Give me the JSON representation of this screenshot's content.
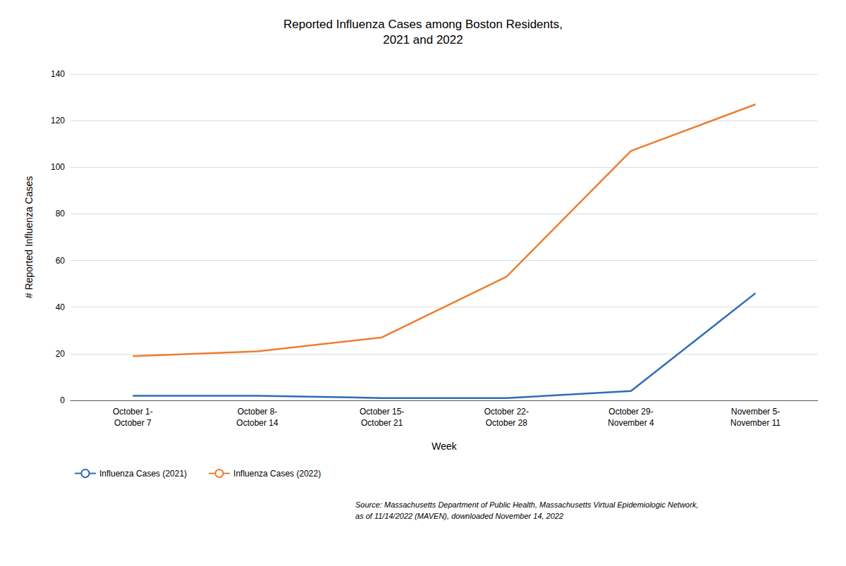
{
  "chart_data": {
    "type": "line",
    "title": "Reported Influenza Cases among Boston Residents,\n2021 and 2022",
    "x_label": "Week",
    "y_label": "# Reported Influenza Cases",
    "categories": [
      "October 1-\nOctober 7",
      "October 8-\nOctober 14",
      "October 15-\nOctober 21",
      "October 22-\nOctober 28",
      "October 29-\nNovember 4",
      "November 5-\nNovember 11"
    ],
    "series": [
      {
        "name": "Influenza Cases (2021)",
        "color": "#2E6DB4",
        "values": [
          2,
          2,
          1,
          1,
          4,
          46
        ]
      },
      {
        "name": "Influenza Cases (2022)",
        "color": "#ED7D31",
        "values": [
          19,
          21,
          27,
          53,
          107,
          127
        ]
      }
    ],
    "ylim": [
      0,
      140
    ],
    "yticks": [
      0,
      20,
      40,
      60,
      80,
      100,
      120,
      140
    ],
    "grid": true,
    "legend": "lower left",
    "annotations": [
      "Source: Massachusetts Department of Public Health, Massachusetts Virtual Epidemiologic Network,\nas of 11/14/2022 (MAVEN), downloaded November 14, 2022"
    ]
  }
}
